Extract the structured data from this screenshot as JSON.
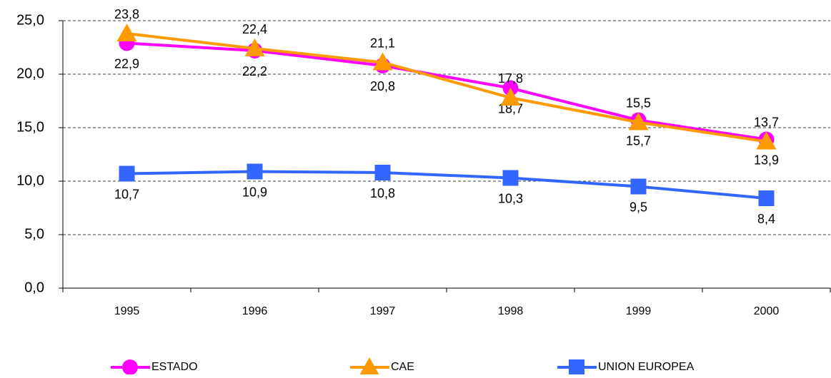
{
  "chart_data": {
    "type": "line",
    "categories": [
      "1995",
      "1996",
      "1997",
      "1998",
      "1999",
      "2000"
    ],
    "series": [
      {
        "name": "ESTADO",
        "color": "#ff00ff",
        "marker": "circle",
        "label_position": "below",
        "values": [
          22.9,
          22.2,
          20.8,
          18.7,
          15.7,
          13.9
        ],
        "value_labels": [
          "22,9",
          "22,2",
          "20,8",
          "18,7",
          "15,7",
          "13,9"
        ]
      },
      {
        "name": "CAE",
        "color": "#ff9900",
        "marker": "triangle",
        "label_position": "above",
        "values": [
          23.8,
          22.4,
          21.1,
          17.8,
          15.5,
          13.7
        ],
        "value_labels": [
          "23,8",
          "22,4",
          "21,1",
          "17,8",
          "15,5",
          "13,7"
        ]
      },
      {
        "name": "UNION EUROPEA",
        "color": "#3366ff",
        "marker": "square",
        "label_position": "below",
        "values": [
          10.7,
          10.9,
          10.8,
          10.3,
          9.5,
          8.4
        ],
        "value_labels": [
          "10,7",
          "10,9",
          "10,8",
          "10,3",
          "9,5",
          "8,4"
        ]
      }
    ],
    "ylim": [
      0,
      25
    ],
    "yticks": [
      {
        "value": 0,
        "label": "0,0"
      },
      {
        "value": 5,
        "label": "5,0"
      },
      {
        "value": 10,
        "label": "10,0"
      },
      {
        "value": 15,
        "label": "15,0"
      },
      {
        "value": 20,
        "label": "20,0"
      },
      {
        "value": 25,
        "label": "25,0"
      }
    ],
    "grid": true,
    "legend": "bottom"
  }
}
